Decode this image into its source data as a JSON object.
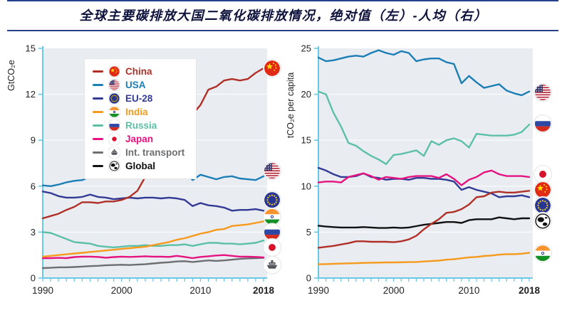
{
  "page": {
    "title": "全球主要碳排放大国二氧化碳排放情况，绝对值（左）-人均（右）",
    "title_color": "#0e123c",
    "rule_color": "#26418c",
    "plot_bg_color": "#e9edf2",
    "axis_color": "#69c8e5",
    "grid_color": "#f9fafb",
    "tick_label_color": "#222222"
  },
  "legend": {
    "position": "upper-left-of-left-chart",
    "items": [
      {
        "label": "China",
        "color": "#b03028",
        "icon": "flag-china"
      },
      {
        "label": "USA",
        "color": "#1b7eb5",
        "icon": "flag-usa"
      },
      {
        "label": "EU-28",
        "color": "#333a94",
        "icon": "flag-eu"
      },
      {
        "label": "India",
        "color": "#f59a1d",
        "icon": "flag-india"
      },
      {
        "label": "Russia",
        "color": "#5cc0a9",
        "icon": "flag-russia"
      },
      {
        "label": "Japan",
        "color": "#e5127f",
        "icon": "flag-japan"
      },
      {
        "label": "Int. transport",
        "color": "#6d6e71",
        "icon": "ship"
      },
      {
        "label": "Global",
        "color": "#111111",
        "icon": "globe"
      }
    ]
  },
  "chart_data": [
    {
      "type": "line",
      "panel": "left",
      "ylabel": "GtCO₂e",
      "xlabel": "",
      "ylim": [
        0,
        15
      ],
      "yticks": [
        0,
        3,
        6,
        9,
        12,
        15
      ],
      "x_start": 1990,
      "x_end": 2018,
      "grid": "horizontal",
      "legend_position": "upper-left",
      "xticks": [
        {
          "label": "1990",
          "year": 1990,
          "bold": false
        },
        {
          "label": "2000",
          "year": 2000,
          "bold": false
        },
        {
          "label": "2010",
          "year": 2010,
          "bold": false
        },
        {
          "label": "2018",
          "year": 2018,
          "bold": true
        }
      ],
      "series": [
        {
          "name": "China",
          "color": "#b03028",
          "icon": "flag-china",
          "icon_y": 13.7,
          "values": [
            3.9,
            4.05,
            4.2,
            4.45,
            4.65,
            4.95,
            4.95,
            4.9,
            5.0,
            5.0,
            5.1,
            5.3,
            5.7,
            6.6,
            7.6,
            8.4,
            9.2,
            9.9,
            10.1,
            10.7,
            11.3,
            12.3,
            12.5,
            12.9,
            13.0,
            12.9,
            13.0,
            13.4,
            13.7
          ]
        },
        {
          "name": "USA",
          "color": "#1b7eb5",
          "icon": "flag-usa",
          "icon_y": 7.0,
          "values": [
            6.05,
            6.0,
            6.1,
            6.25,
            6.35,
            6.4,
            6.6,
            6.75,
            6.8,
            6.8,
            7.0,
            6.9,
            6.9,
            6.95,
            7.0,
            7.05,
            6.95,
            7.1,
            6.9,
            6.4,
            6.75,
            6.6,
            6.45,
            6.6,
            6.65,
            6.5,
            6.45,
            6.4,
            6.65
          ]
        },
        {
          "name": "EU-28",
          "color": "#333a94",
          "icon": "flag-eu",
          "icon_y": 5.1,
          "values": [
            5.65,
            5.55,
            5.35,
            5.25,
            5.25,
            5.3,
            5.45,
            5.3,
            5.25,
            5.15,
            5.2,
            5.25,
            5.2,
            5.25,
            5.25,
            5.2,
            5.25,
            5.2,
            5.1,
            4.7,
            4.9,
            4.75,
            4.7,
            4.6,
            4.4,
            4.45,
            4.45,
            4.5,
            4.4
          ]
        },
        {
          "name": "India",
          "color": "#f59a1d",
          "icon": "flag-india",
          "icon_y": 4.0,
          "values": [
            1.4,
            1.45,
            1.5,
            1.55,
            1.6,
            1.65,
            1.7,
            1.75,
            1.8,
            1.85,
            1.9,
            1.95,
            2.0,
            2.05,
            2.15,
            2.25,
            2.35,
            2.5,
            2.6,
            2.75,
            2.9,
            3.0,
            3.15,
            3.2,
            3.4,
            3.45,
            3.5,
            3.6,
            3.7
          ]
        },
        {
          "name": "Russia",
          "color": "#5cc0a9",
          "icon": "flag-russia",
          "icon_y": 3.0,
          "values": [
            3.0,
            2.95,
            2.75,
            2.55,
            2.35,
            2.3,
            2.25,
            2.1,
            2.05,
            2.0,
            2.05,
            2.1,
            2.1,
            2.15,
            2.1,
            2.1,
            2.15,
            2.15,
            2.2,
            2.1,
            2.2,
            2.3,
            2.3,
            2.25,
            2.25,
            2.2,
            2.25,
            2.3,
            2.45
          ]
        },
        {
          "name": "Japan",
          "color": "#e5127f",
          "icon": "flag-japan",
          "icon_y": 2.0,
          "values": [
            1.3,
            1.3,
            1.32,
            1.3,
            1.37,
            1.4,
            1.4,
            1.38,
            1.33,
            1.37,
            1.4,
            1.38,
            1.4,
            1.42,
            1.4,
            1.4,
            1.38,
            1.45,
            1.38,
            1.3,
            1.38,
            1.42,
            1.47,
            1.5,
            1.45,
            1.4,
            1.4,
            1.38,
            1.35
          ]
        },
        {
          "name": "Int. transport",
          "color": "#6d6e71",
          "icon": "ship",
          "icon_y": 0.85,
          "values": [
            0.65,
            0.67,
            0.7,
            0.7,
            0.72,
            0.75,
            0.78,
            0.8,
            0.83,
            0.85,
            0.87,
            0.85,
            0.88,
            0.9,
            0.95,
            1.0,
            1.03,
            1.08,
            1.1,
            1.05,
            1.1,
            1.15,
            1.12,
            1.15,
            1.2,
            1.25,
            1.28,
            1.3,
            1.32
          ]
        }
      ]
    },
    {
      "type": "line",
      "panel": "right",
      "ylabel": "tCO₂e per capita",
      "xlabel": "",
      "ylim": [
        0,
        25
      ],
      "yticks": [
        0,
        5,
        10,
        15,
        20,
        25
      ],
      "x_start": 1990,
      "x_end": 2018,
      "grid": "horizontal",
      "legend_position": "none",
      "xticks": [
        {
          "label": "1990",
          "year": 1990,
          "bold": false
        },
        {
          "label": "2000",
          "year": 2000,
          "bold": false
        },
        {
          "label": "2010",
          "year": 2010,
          "bold": false
        },
        {
          "label": "2018",
          "year": 2018,
          "bold": true
        }
      ],
      "series": [
        {
          "name": "USA",
          "color": "#1b7eb5",
          "icon": "flag-usa",
          "icon_y": 20.2,
          "values": [
            24.0,
            23.6,
            23.7,
            23.9,
            24.1,
            24.2,
            24.1,
            24.5,
            24.8,
            24.5,
            24.3,
            24.7,
            24.5,
            23.6,
            23.8,
            23.9,
            23.9,
            23.5,
            23.3,
            21.2,
            22.0,
            21.3,
            20.7,
            20.9,
            21.1,
            20.4,
            20.1,
            19.9,
            20.3
          ]
        },
        {
          "name": "Russia",
          "color": "#5cc0a9",
          "icon": "flag-russia",
          "icon_y": 16.8,
          "values": [
            20.3,
            20.0,
            18.0,
            16.5,
            14.7,
            14.4,
            13.8,
            13.3,
            12.9,
            12.4,
            13.4,
            13.5,
            13.7,
            13.9,
            13.3,
            14.9,
            14.5,
            15.0,
            15.2,
            14.9,
            14.2,
            15.7,
            15.6,
            15.5,
            15.5,
            15.5,
            15.6,
            15.9,
            16.7
          ]
        },
        {
          "name": "Japan",
          "color": "#e5127f",
          "icon": "flag-japan",
          "icon_y": 11.3,
          "values": [
            10.4,
            10.5,
            10.5,
            10.4,
            11.0,
            11.2,
            11.4,
            11.1,
            10.7,
            11.0,
            10.9,
            10.8,
            11.0,
            11.1,
            11.1,
            11.1,
            10.9,
            11.3,
            10.8,
            10.1,
            10.7,
            11.0,
            11.5,
            11.7,
            11.3,
            11.1,
            11.1,
            11.1,
            11.0
          ]
        },
        {
          "name": "China",
          "color": "#b03028",
          "icon": "flag-china",
          "icon_y": 9.6,
          "values": [
            3.3,
            3.4,
            3.5,
            3.65,
            3.8,
            4.0,
            4.0,
            3.95,
            3.95,
            3.95,
            3.9,
            4.0,
            4.2,
            4.6,
            5.3,
            5.9,
            6.4,
            7.1,
            7.2,
            7.5,
            8.0,
            8.8,
            8.9,
            9.3,
            9.4,
            9.3,
            9.3,
            9.4,
            9.5
          ]
        },
        {
          "name": "EU-28",
          "color": "#333a94",
          "icon": "flag-eu",
          "icon_y": 7.9,
          "values": [
            12.0,
            11.7,
            11.3,
            11.0,
            11.0,
            11.1,
            11.4,
            11.0,
            10.9,
            10.7,
            10.8,
            10.8,
            10.7,
            10.9,
            10.9,
            10.8,
            10.8,
            10.7,
            10.5,
            9.6,
            9.9,
            9.6,
            9.4,
            9.2,
            8.8,
            8.9,
            8.9,
            9.0,
            8.8
          ]
        },
        {
          "name": "Global",
          "color": "#111111",
          "icon": "globe",
          "icon_y": 6.2,
          "values": [
            5.7,
            5.6,
            5.55,
            5.5,
            5.5,
            5.5,
            5.55,
            5.5,
            5.45,
            5.45,
            5.5,
            5.45,
            5.5,
            5.65,
            5.8,
            5.9,
            6.0,
            6.1,
            6.1,
            6.0,
            6.3,
            6.4,
            6.4,
            6.4,
            6.6,
            6.5,
            6.4,
            6.5,
            6.5
          ]
        },
        {
          "name": "India",
          "color": "#f59a1d",
          "icon": "flag-india",
          "icon_y": 2.7,
          "values": [
            1.5,
            1.52,
            1.55,
            1.57,
            1.6,
            1.62,
            1.65,
            1.67,
            1.68,
            1.7,
            1.7,
            1.72,
            1.73,
            1.75,
            1.8,
            1.85,
            1.9,
            2.0,
            2.05,
            2.15,
            2.25,
            2.3,
            2.4,
            2.45,
            2.55,
            2.6,
            2.6,
            2.65,
            2.75
          ]
        }
      ]
    }
  ]
}
